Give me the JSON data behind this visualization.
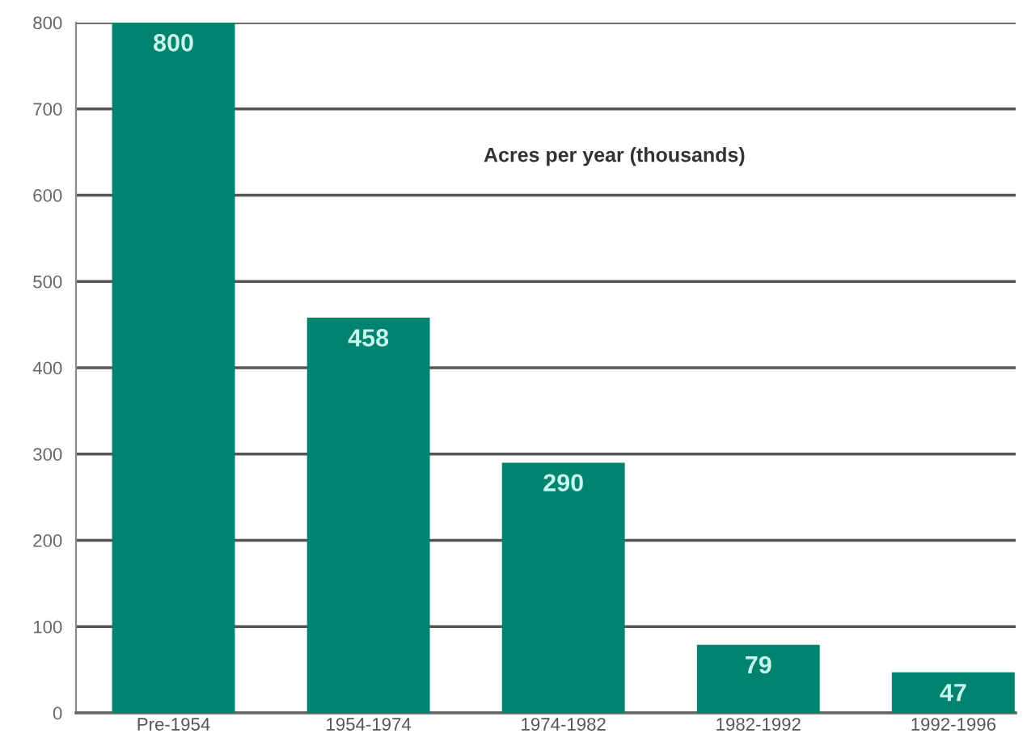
{
  "chart_data": {
    "type": "bar",
    "title": "Acres per year (thousands)",
    "categories": [
      "Pre-1954",
      "1954-1974",
      "1974-1982",
      "1982-1992",
      "1992-1996"
    ],
    "values": [
      800,
      458,
      290,
      79,
      47
    ],
    "color": "#00836f",
    "ylim": [
      0,
      800
    ],
    "yticks": [
      0,
      100,
      200,
      300,
      400,
      500,
      600,
      700,
      800
    ],
    "grid": "y",
    "data_labels": true
  }
}
